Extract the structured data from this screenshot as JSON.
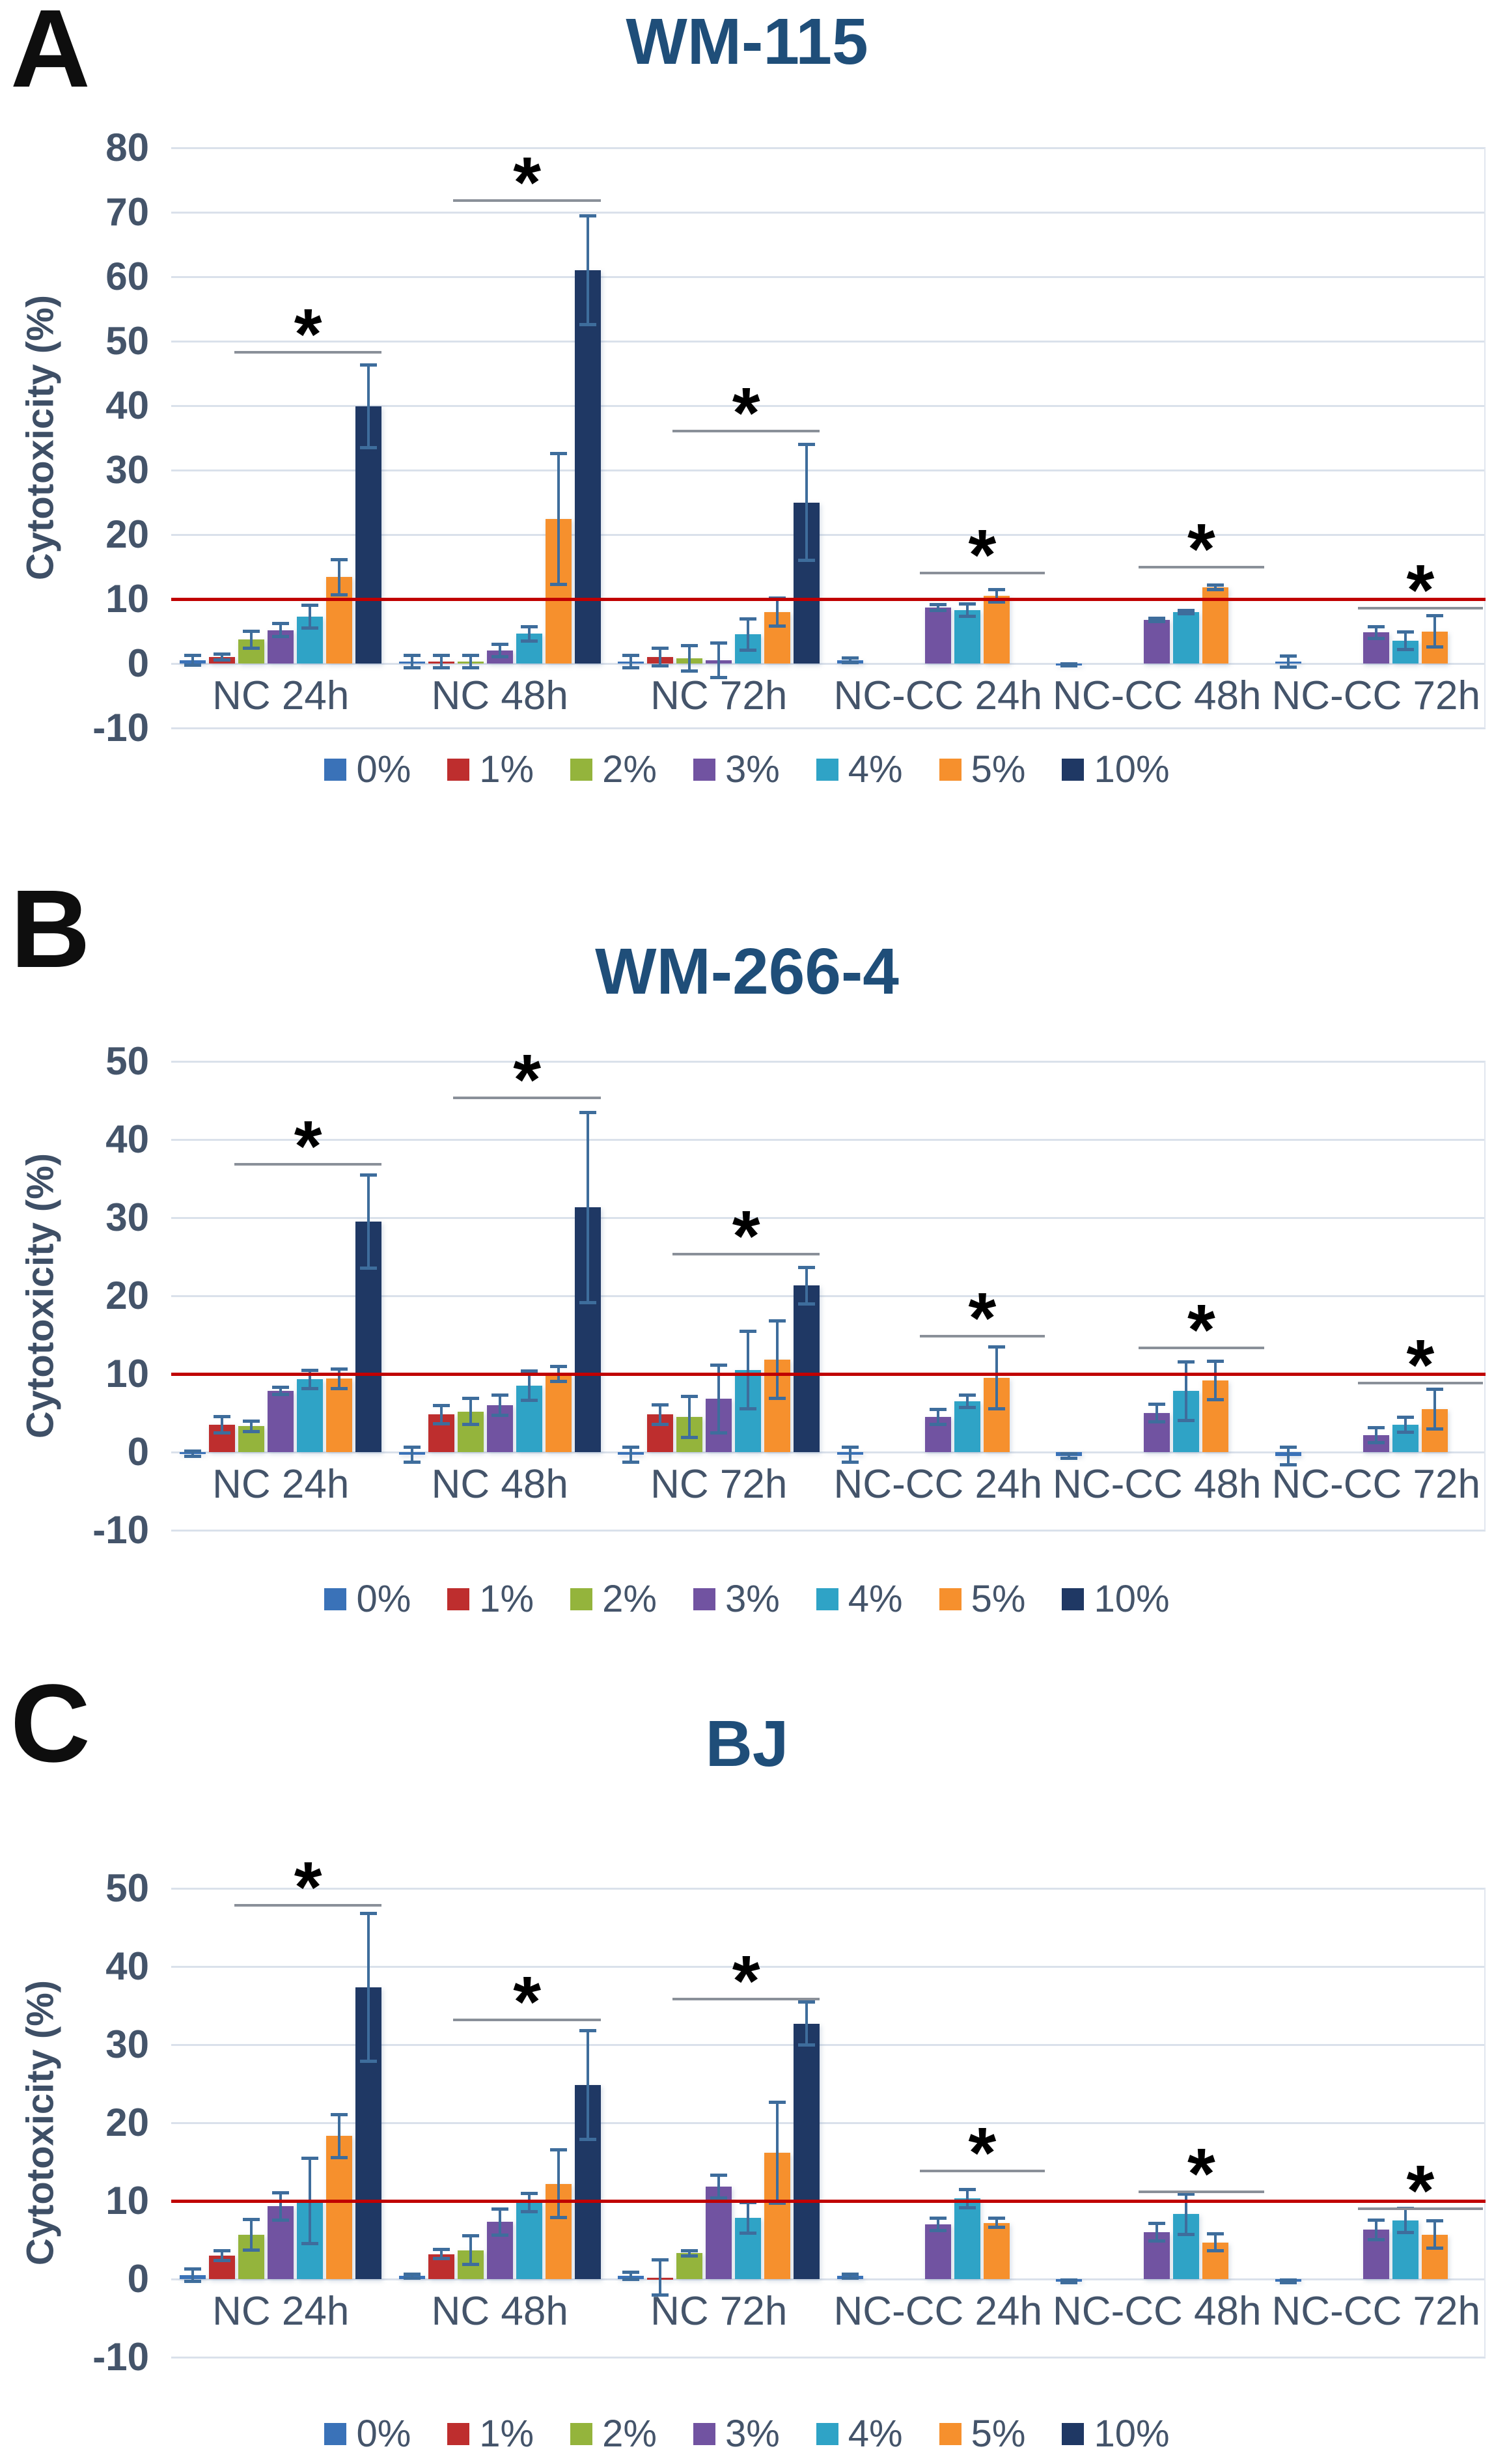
{
  "legend": {
    "items": [
      {
        "label": "0%",
        "color": "#3A72B8"
      },
      {
        "label": "1%",
        "color": "#BE2E2E"
      },
      {
        "label": "2%",
        "color": "#94B43C"
      },
      {
        "label": "3%",
        "color": "#7153A1"
      },
      {
        "label": "4%",
        "color": "#2FA3C6"
      },
      {
        "label": "5%",
        "color": "#F6902D"
      },
      {
        "label": "10%",
        "color": "#1F3864"
      }
    ]
  },
  "chart_data": [
    {
      "type": "bar",
      "panel": "A",
      "title": "WM-115",
      "ylabel": "Cytotoxicity (%)",
      "ylim": [
        -10,
        80
      ],
      "yticks": [
        80,
        70,
        60,
        50,
        40,
        30,
        20,
        10,
        0,
        -10
      ],
      "grid": true,
      "legend_position": "bottom",
      "ref_line": {
        "y": 10,
        "color": "#C00000"
      },
      "categories": [
        "NC 24h",
        "NC 48h",
        "NC 72h",
        "NC-CC 24h",
        "NC-CC 48h",
        "NC-CC 72h"
      ],
      "series": [
        {
          "name": "0%",
          "color": "#3A72B8",
          "values": [
            0.5,
            0.3,
            0.3,
            0.5,
            -0.2,
            0.3
          ],
          "errors": [
            0.8,
            1.0,
            1.0,
            0.4,
            0.2,
            0.9
          ]
        },
        {
          "name": "1%",
          "color": "#BE2E2E",
          "values": [
            1.0,
            0.3,
            1.0,
            0,
            0,
            0
          ],
          "errors": [
            0.5,
            1.0,
            1.4,
            0,
            0,
            0
          ]
        },
        {
          "name": "2%",
          "color": "#94B43C",
          "values": [
            3.7,
            0.3,
            0.8,
            0,
            0,
            0
          ],
          "errors": [
            1.4,
            1.0,
            2.0,
            0,
            0,
            0
          ]
        },
        {
          "name": "3%",
          "color": "#7153A1",
          "values": [
            5.2,
            2.0,
            0.5,
            8.7,
            6.8,
            4.8
          ],
          "errors": [
            1.1,
            1.0,
            2.7,
            0.5,
            0.3,
            1.0
          ]
        },
        {
          "name": "4%",
          "color": "#2FA3C6",
          "values": [
            7.3,
            4.6,
            4.5,
            8.3,
            8.0,
            3.5
          ],
          "errors": [
            1.8,
            1.2,
            2.5,
            1.0,
            0.3,
            1.4
          ]
        },
        {
          "name": "5%",
          "color": "#F6902D",
          "values": [
            13.4,
            22.4,
            8.0,
            10.5,
            11.8,
            5.0
          ],
          "errors": [
            2.8,
            10.2,
            2.2,
            1.0,
            0.4,
            2.5
          ]
        },
        {
          "name": "10%",
          "color": "#1F3864",
          "values": [
            39.9,
            61.0,
            25.0,
            0,
            0,
            0
          ],
          "errors": [
            6.5,
            8.5,
            9.0,
            0,
            0,
            0
          ]
        }
      ],
      "significance": [
        {
          "category_index": 0,
          "y": 48.5,
          "label": "*"
        },
        {
          "category_index": 1,
          "y": 72.0,
          "label": "*"
        },
        {
          "category_index": 2,
          "y": 36.3,
          "label": "*"
        },
        {
          "category_index": 3,
          "y": 14.2,
          "label": "*"
        },
        {
          "category_index": 4,
          "y": 15.2,
          "label": "*"
        },
        {
          "category_index": 5,
          "y": 8.8,
          "label": "*"
        }
      ]
    },
    {
      "type": "bar",
      "panel": "B",
      "title": "WM-266-4",
      "ylabel": "Cytotoxicity (%)",
      "ylim": [
        -10,
        50
      ],
      "yticks": [
        50,
        40,
        30,
        20,
        10,
        0,
        -10
      ],
      "grid": true,
      "legend_position": "bottom",
      "ref_line": {
        "y": 10,
        "color": "#C00000"
      },
      "categories": [
        "NC 24h",
        "NC 48h",
        "NC 72h",
        "NC-CC 24h",
        "NC-CC 48h",
        "NC-CC 72h"
      ],
      "series": [
        {
          "name": "0%",
          "color": "#3A72B8",
          "values": [
            -0.2,
            -0.3,
            -0.3,
            -0.3,
            -0.5,
            -0.5
          ],
          "errors": [
            0.4,
            1.0,
            1.0,
            1.0,
            0.3,
            1.2
          ]
        },
        {
          "name": "1%",
          "color": "#BE2E2E",
          "values": [
            3.5,
            4.8,
            4.8,
            0,
            0,
            0
          ],
          "errors": [
            1.1,
            1.2,
            1.3,
            0,
            0,
            0
          ]
        },
        {
          "name": "2%",
          "color": "#94B43C",
          "values": [
            3.3,
            5.2,
            4.5,
            0,
            0,
            0
          ],
          "errors": [
            0.7,
            1.7,
            2.7,
            0,
            0,
            0
          ]
        },
        {
          "name": "3%",
          "color": "#7153A1",
          "values": [
            7.8,
            6.0,
            6.8,
            4.5,
            5.0,
            2.2
          ],
          "errors": [
            0.5,
            1.3,
            4.4,
            1.0,
            1.2,
            1.0
          ]
        },
        {
          "name": "4%",
          "color": "#2FA3C6",
          "values": [
            9.3,
            8.5,
            10.5,
            6.5,
            7.8,
            3.5
          ],
          "errors": [
            1.2,
            1.9,
            5.0,
            0.8,
            3.8,
            1.0
          ]
        },
        {
          "name": "5%",
          "color": "#F6902D",
          "values": [
            9.4,
            10.0,
            11.8,
            9.5,
            9.2,
            5.5
          ],
          "errors": [
            1.3,
            1.0,
            5.0,
            4.0,
            2.5,
            2.6
          ]
        },
        {
          "name": "10%",
          "color": "#1F3864",
          "values": [
            29.5,
            31.3,
            21.3,
            0,
            0,
            0
          ],
          "errors": [
            6.0,
            12.2,
            2.4,
            0,
            0,
            0
          ]
        }
      ],
      "significance": [
        {
          "category_index": 0,
          "y": 37.0,
          "label": "*"
        },
        {
          "category_index": 1,
          "y": 45.5,
          "label": "*"
        },
        {
          "category_index": 2,
          "y": 25.5,
          "label": "*"
        },
        {
          "category_index": 3,
          "y": 15.0,
          "label": "*"
        },
        {
          "category_index": 4,
          "y": 13.5,
          "label": "*"
        },
        {
          "category_index": 5,
          "y": 9.0,
          "label": "*"
        }
      ]
    },
    {
      "type": "bar",
      "panel": "C",
      "title": "BJ",
      "ylabel": "Cytotoxicity (%)",
      "ylim": [
        -10,
        50
      ],
      "yticks": [
        50,
        40,
        30,
        20,
        10,
        0,
        -10
      ],
      "grid": true,
      "legend_position": "bottom",
      "ref_line": {
        "y": 10,
        "color": "#C00000"
      },
      "categories": [
        "NC 24h",
        "NC 48h",
        "NC 72h",
        "NC-CC 24h",
        "NC-CC 48h",
        "NC-CC 72h"
      ],
      "series": [
        {
          "name": "0%",
          "color": "#3A72B8",
          "values": [
            0.5,
            0.4,
            0.4,
            0.4,
            -0.3,
            -0.3
          ],
          "errors": [
            0.8,
            0.3,
            0.5,
            0.3,
            0.2,
            0.2
          ]
        },
        {
          "name": "1%",
          "color": "#BE2E2E",
          "values": [
            3.0,
            3.2,
            0.2,
            0,
            0,
            0
          ],
          "errors": [
            0.7,
            0.6,
            2.3,
            0,
            0,
            0
          ]
        },
        {
          "name": "2%",
          "color": "#94B43C",
          "values": [
            5.7,
            3.7,
            3.3,
            0,
            0,
            0
          ],
          "errors": [
            2.0,
            1.9,
            0.4,
            0,
            0,
            0
          ]
        },
        {
          "name": "3%",
          "color": "#7153A1",
          "values": [
            9.3,
            7.3,
            11.8,
            7.0,
            6.0,
            6.3
          ],
          "errors": [
            1.8,
            1.7,
            1.5,
            0.8,
            1.2,
            1.3
          ]
        },
        {
          "name": "4%",
          "color": "#2FA3C6",
          "values": [
            10.0,
            9.8,
            7.8,
            10.3,
            8.3,
            7.5
          ],
          "errors": [
            5.5,
            1.2,
            2.0,
            1.2,
            2.6,
            1.6
          ]
        },
        {
          "name": "5%",
          "color": "#F6902D",
          "values": [
            18.3,
            12.2,
            16.2,
            7.2,
            4.7,
            5.7
          ],
          "errors": [
            2.8,
            4.4,
            6.5,
            0.6,
            1.1,
            1.8
          ]
        },
        {
          "name": "10%",
          "color": "#1F3864",
          "values": [
            37.3,
            24.8,
            32.7,
            0,
            0,
            0
          ],
          "errors": [
            9.5,
            7.0,
            2.8,
            0,
            0,
            0
          ]
        }
      ],
      "significance": [
        {
          "category_index": 0,
          "y": 48.0,
          "label": "*"
        },
        {
          "category_index": 1,
          "y": 33.3,
          "label": "*"
        },
        {
          "category_index": 2,
          "y": 36.0,
          "label": "*"
        },
        {
          "category_index": 3,
          "y": 14.0,
          "label": "*"
        },
        {
          "category_index": 4,
          "y": 11.3,
          "label": "*"
        },
        {
          "category_index": 5,
          "y": 9.2,
          "label": "*"
        }
      ]
    }
  ]
}
